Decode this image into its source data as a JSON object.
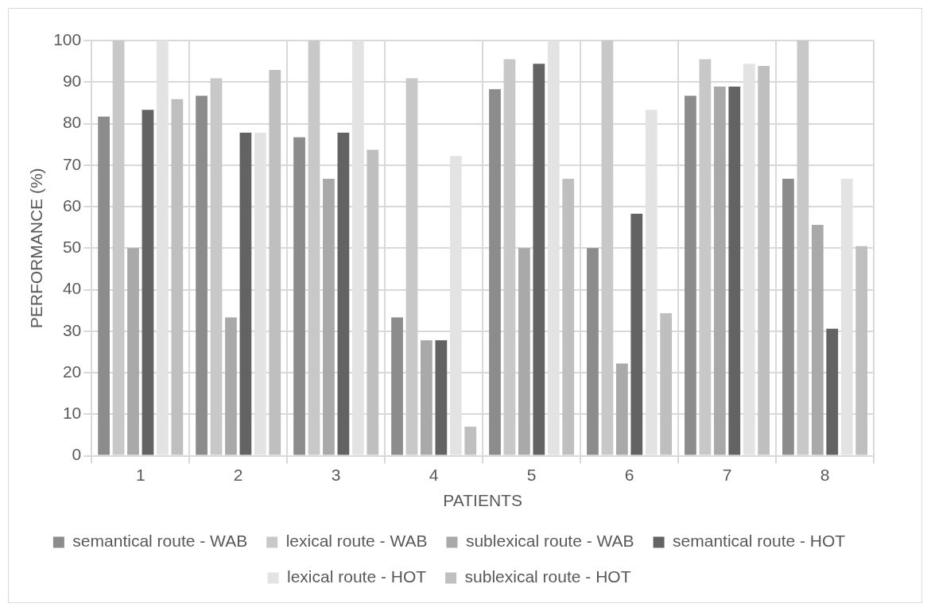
{
  "chart_data": {
    "type": "bar",
    "xlabel": "PATIENTS",
    "ylabel": "PERFORMANCE (%)",
    "categories": [
      "1",
      "2",
      "3",
      "4",
      "5",
      "6",
      "7",
      "8"
    ],
    "series": [
      {
        "name": "semantical route - WAB",
        "color": "#8c8c8c",
        "values": [
          81.7,
          86.7,
          76.7,
          33.3,
          88.3,
          50,
          86.7,
          66.7
        ]
      },
      {
        "name": "lexical route - WAB",
        "color": "#c8c8c8",
        "values": [
          100,
          90.9,
          100,
          90.9,
          95.5,
          100,
          95.5,
          100
        ]
      },
      {
        "name": "sublexical route - WAB",
        "color": "#a9a9a9",
        "values": [
          50,
          33.3,
          66.7,
          27.8,
          50,
          22.2,
          88.9,
          55.6
        ]
      },
      {
        "name": "semantical route - HOT",
        "color": "#636363",
        "values": [
          83.3,
          77.8,
          77.8,
          27.8,
          94.4,
          58.3,
          88.9,
          30.6
        ]
      },
      {
        "name": "lexical route - HOT",
        "color": "#e3e3e3",
        "values": [
          100,
          77.8,
          100,
          72.2,
          100,
          83.3,
          94.4,
          66.7
        ]
      },
      {
        "name": "sublexical route - HOT",
        "color": "#bfbfbf",
        "values": [
          85.9,
          92.9,
          73.7,
          7,
          66.7,
          34.3,
          93.9,
          50.5
        ]
      }
    ],
    "ylim": [
      0,
      100
    ],
    "yticks": [
      0,
      10,
      20,
      30,
      40,
      50,
      60,
      70,
      80,
      90,
      100
    ],
    "grid": true,
    "legend": "bottom"
  }
}
